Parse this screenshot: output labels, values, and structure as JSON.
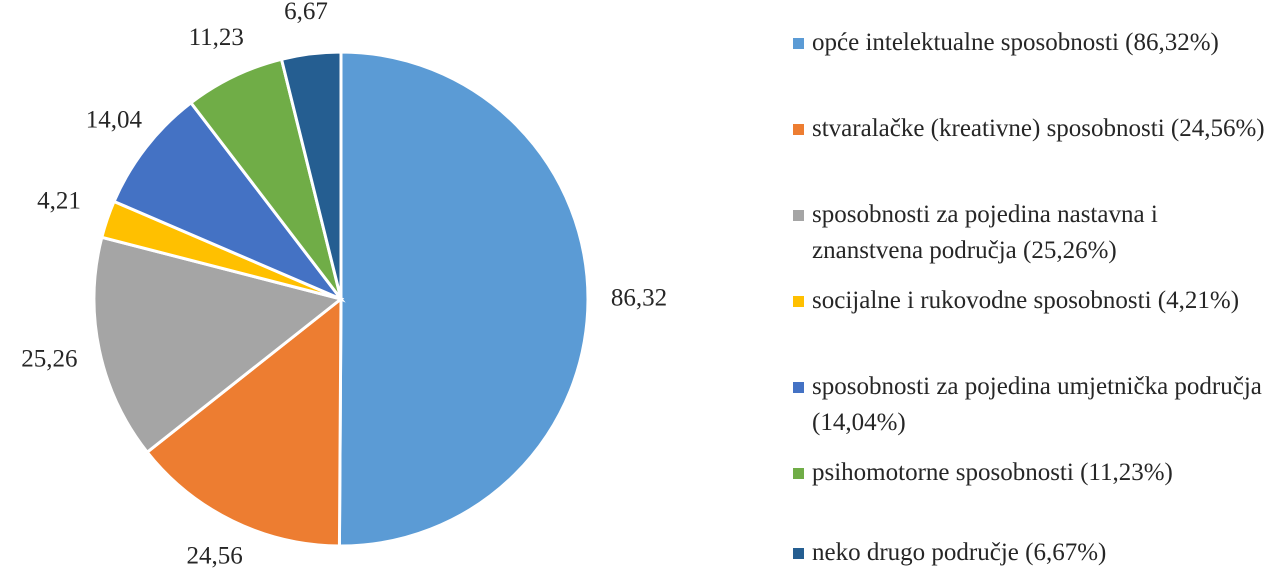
{
  "chart_data": {
    "type": "pie",
    "categories": [
      "opće intelektualne sposobnosti (86,32%)",
      "stvaralačke (kreativne) sposobnosti (24,56%)",
      "sposobnosti za pojedina nastavna i znanstvena područja (25,26%)",
      "socijalne i rukovodne sposobnosti (4,21%)",
      "sposobnosti za pojedina umjetnička područja (14,04%)",
      "psihomotorne sposobnosti (11,23%)",
      "neko drugo područje (6,67%)"
    ],
    "values": [
      86.32,
      24.56,
      25.26,
      4.21,
      14.04,
      11.23,
      6.67
    ],
    "value_labels": [
      "86,32",
      "24,56",
      "25,26",
      "4,21",
      "14,04",
      "11,23",
      "6,67"
    ],
    "colors": [
      "#5b9bd5",
      "#ed7d31",
      "#a5a5a5",
      "#ffc000",
      "#4472c4",
      "#70ad47",
      "#255e91"
    ],
    "legend": "right"
  }
}
